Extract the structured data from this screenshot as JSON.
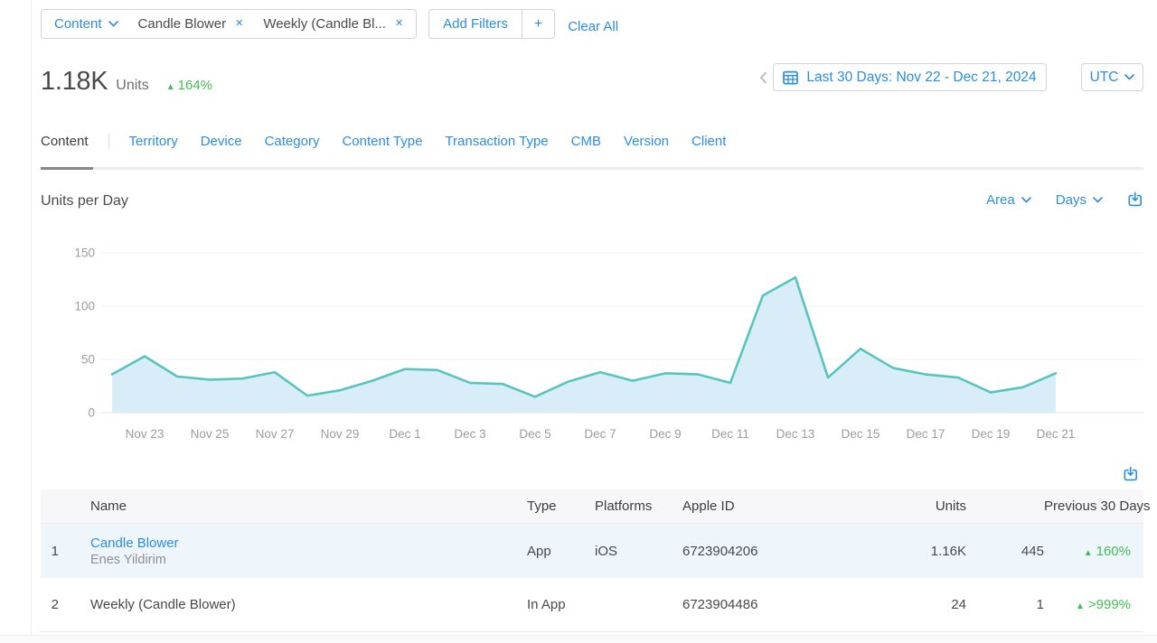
{
  "filters": {
    "dimension_label": "Content",
    "chips": [
      "Candle Blower",
      "Weekly (Candle Bl..."
    ],
    "add_filters_label": "Add Filters",
    "plus_label": "+",
    "clear_all_label": "Clear All"
  },
  "metrics": {
    "value": "1.18K",
    "unit_label": "Units",
    "change": "164%",
    "change_direction": "up",
    "up_glyph": "▲"
  },
  "date_picker": {
    "label": "Last 30 Days: Nov 22 - Dec 21, 2024",
    "timezone": "UTC"
  },
  "tabs": {
    "active": "Content",
    "items": [
      "Content",
      "Territory",
      "Device",
      "Category",
      "Content Type",
      "Transaction Type",
      "CMB",
      "Version",
      "Client"
    ]
  },
  "chart_header": {
    "title": "Units per Day",
    "chart_type": "Area",
    "granularity": "Days"
  },
  "chart_data": {
    "type": "area",
    "title": "Units per Day",
    "x": [
      "Nov 22",
      "Nov 23",
      "Nov 24",
      "Nov 25",
      "Nov 26",
      "Nov 27",
      "Nov 28",
      "Nov 29",
      "Nov 30",
      "Dec 1",
      "Dec 2",
      "Dec 3",
      "Dec 4",
      "Dec 5",
      "Dec 6",
      "Dec 7",
      "Dec 8",
      "Dec 9",
      "Dec 10",
      "Dec 11",
      "Dec 12",
      "Dec 13",
      "Dec 14",
      "Dec 15",
      "Dec 16",
      "Dec 17",
      "Dec 18",
      "Dec 19",
      "Dec 20",
      "Dec 21"
    ],
    "values": [
      36,
      53,
      34,
      31,
      32,
      38,
      16,
      21,
      30,
      41,
      40,
      28,
      27,
      15,
      29,
      38,
      30,
      37,
      36,
      28,
      110,
      127,
      33,
      60,
      42,
      36,
      33,
      19,
      24,
      37
    ],
    "x_tick_labels": [
      "Nov 23",
      "Nov 25",
      "Nov 27",
      "Nov 29",
      "Dec 1",
      "Dec 3",
      "Dec 5",
      "Dec 7",
      "Dec 9",
      "Dec 11",
      "Dec 13",
      "Dec 15",
      "Dec 17",
      "Dec 19",
      "Dec 21"
    ],
    "y_ticks": [
      0,
      50,
      100,
      150
    ],
    "ylim": [
      0,
      150
    ],
    "grid": true,
    "legend": "none",
    "line_color": "#57c5bd",
    "area_color": "#d9edf8"
  },
  "table": {
    "headers": {
      "name": "Name",
      "type": "Type",
      "platforms": "Platforms",
      "apple_id": "Apple ID",
      "units": "Units",
      "previous": "Previous 30 Days"
    },
    "rows": [
      {
        "rank": "1",
        "dot_color": "#41a1e8",
        "name": "Candle Blower",
        "subtitle": "Enes Yildirim",
        "type": "App",
        "platforms": "iOS",
        "apple_id": "6723904206",
        "units": "1.16K",
        "previous": "445",
        "change": "160%"
      },
      {
        "rank": "2",
        "dot_color": "#50c48c",
        "name": "Weekly (Candle Blower)",
        "subtitle": "",
        "type": "In App",
        "platforms": "",
        "apple_id": "6723904486",
        "units": "24",
        "previous": "1",
        "change": ">999%"
      }
    ]
  },
  "icons": {
    "chevron_down": "chevron-down-icon",
    "chevron_left": "chevron-left-icon",
    "close": "close-icon",
    "calendar": "calendar-icon",
    "download": "download-icon"
  },
  "colors": {
    "accent": "#2b8de0",
    "green": "#3fbf51",
    "teal_line": "#57c5bd",
    "area_fill": "#d9edf8",
    "row_highlight": "#eef6fc"
  }
}
